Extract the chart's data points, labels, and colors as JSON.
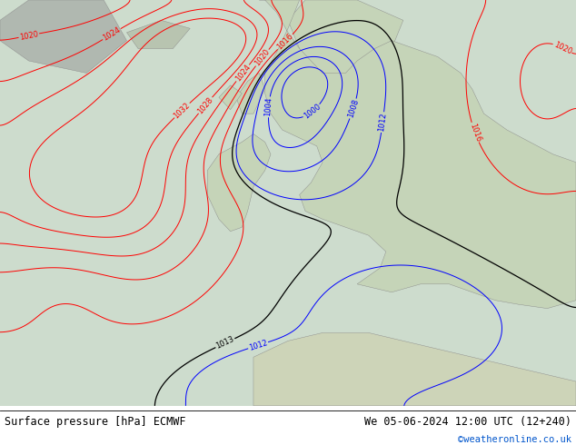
{
  "title_left": "Surface pressure [hPa] ECMWF",
  "title_right": "We 05-06-2024 12:00 UTC (12+240)",
  "copyright": "©weatheronline.co.uk",
  "fig_width": 6.34,
  "fig_height": 4.9,
  "dpi": 100,
  "bg_map_color": "#c8dfc8",
  "sea_color": "#b8d4e8",
  "info_bar_height": 0.088,
  "contour_lw": 0.7,
  "label_fontsize": 6.0
}
